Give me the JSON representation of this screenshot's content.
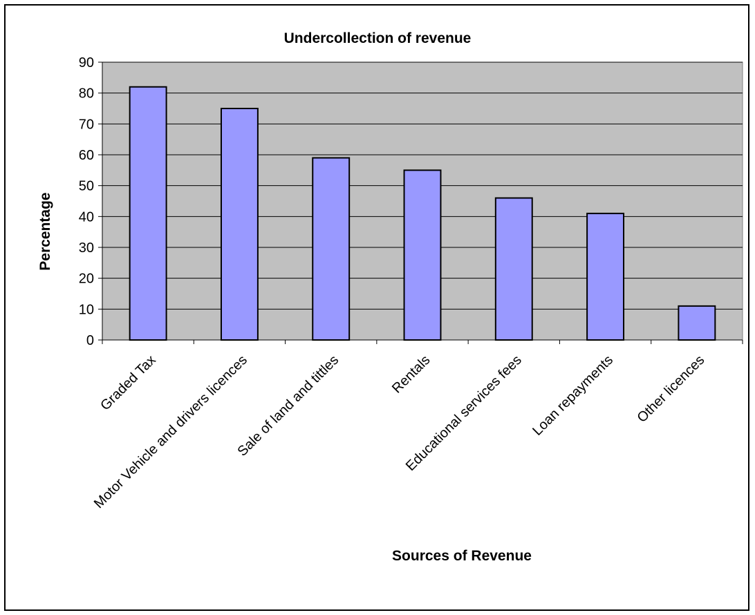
{
  "chart_data": {
    "type": "bar",
    "title": "Undercollection of revenue",
    "xlabel": "Sources of Revenue",
    "ylabel": "Percentage",
    "ylim": [
      0,
      90
    ],
    "yticks": [
      "0",
      "10",
      "20",
      "30",
      "40",
      "50",
      "60",
      "70",
      "80",
      "90"
    ],
    "categories": [
      "Graded Tax",
      "Motor Vehicle and drivers licences",
      "Sale of land and tittles",
      "Rentals",
      "Educational services fees",
      "Loan repayments",
      "Other licences"
    ],
    "values": [
      82,
      75,
      59,
      55,
      46,
      41,
      11
    ],
    "grid": true,
    "legend": "none",
    "colors": {
      "bar_fill": "#9999ff",
      "bar_stroke": "#000000",
      "plot_bg": "#c0c0c0",
      "gridline": "#000000"
    }
  }
}
